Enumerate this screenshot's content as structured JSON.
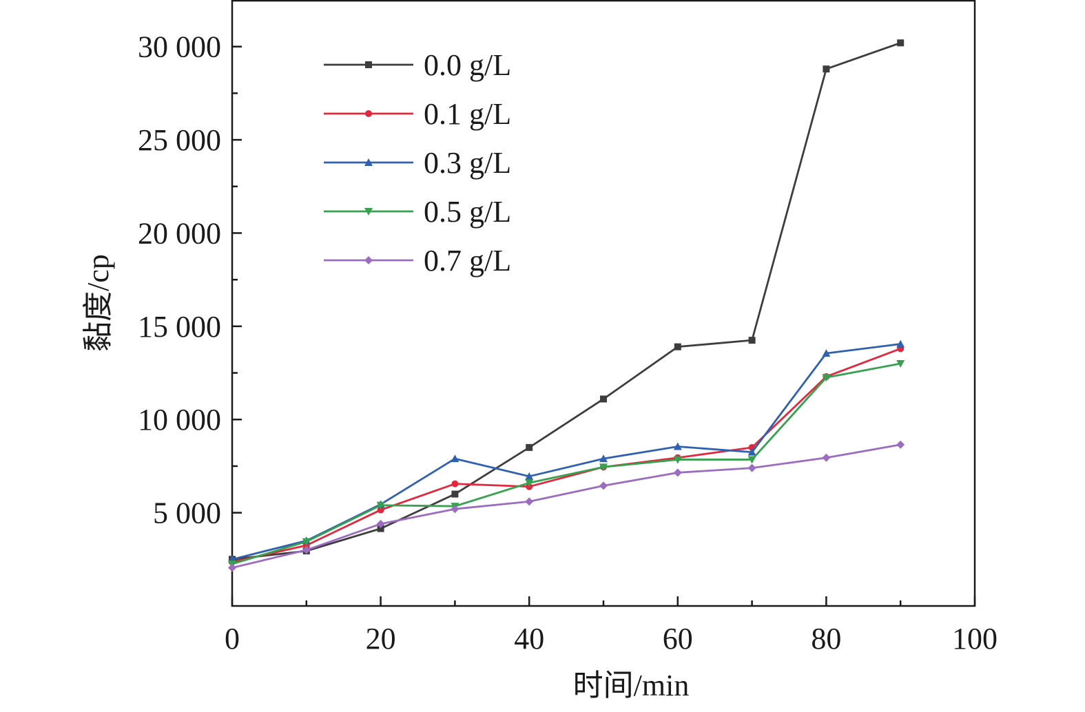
{
  "chart_data": {
    "type": "line",
    "xlabel": "时间/min",
    "ylabel": "黏度/cp",
    "xlim": [
      0,
      100
    ],
    "ylim": [
      0,
      32500
    ],
    "x_ticks": [
      0,
      20,
      40,
      60,
      80,
      100
    ],
    "x_tick_labels": [
      "0",
      "20",
      "40",
      "60",
      "80",
      "100"
    ],
    "y_ticks": [
      5000,
      10000,
      15000,
      20000,
      25000,
      30000
    ],
    "y_tick_labels": [
      "5 000",
      "10 000",
      "15 000",
      "20 000",
      "25 000",
      "30 000"
    ],
    "grid": false,
    "legend_position": "top-left",
    "x": [
      0,
      10,
      20,
      30,
      40,
      50,
      60,
      70,
      80,
      90
    ],
    "series": [
      {
        "name": "0.0 g/L",
        "color": "#3d3d3d",
        "marker": "square",
        "values": [
          2500,
          2950,
          4150,
          6000,
          8500,
          11100,
          13900,
          14250,
          28800,
          30200
        ]
      },
      {
        "name": "0.1 g/L",
        "color": "#e0283e",
        "marker": "circle",
        "values": [
          2350,
          3250,
          5150,
          6550,
          6400,
          7450,
          7950,
          8500,
          12300,
          13800
        ]
      },
      {
        "name": "0.3 g/L",
        "color": "#3060b0",
        "marker": "triangle-up",
        "values": [
          2500,
          3500,
          5450,
          7900,
          6950,
          7900,
          8550,
          8250,
          13550,
          14050
        ]
      },
      {
        "name": "0.5 g/L",
        "color": "#36a14e",
        "marker": "triangle-down",
        "values": [
          2250,
          3450,
          5400,
          5350,
          6600,
          7450,
          7850,
          7850,
          12250,
          13000
        ]
      },
      {
        "name": "0.7 g/L",
        "color": "#9b6cc0",
        "marker": "diamond",
        "values": [
          2050,
          3000,
          4400,
          5200,
          5600,
          6450,
          7150,
          7400,
          7950,
          8650
        ]
      }
    ]
  }
}
